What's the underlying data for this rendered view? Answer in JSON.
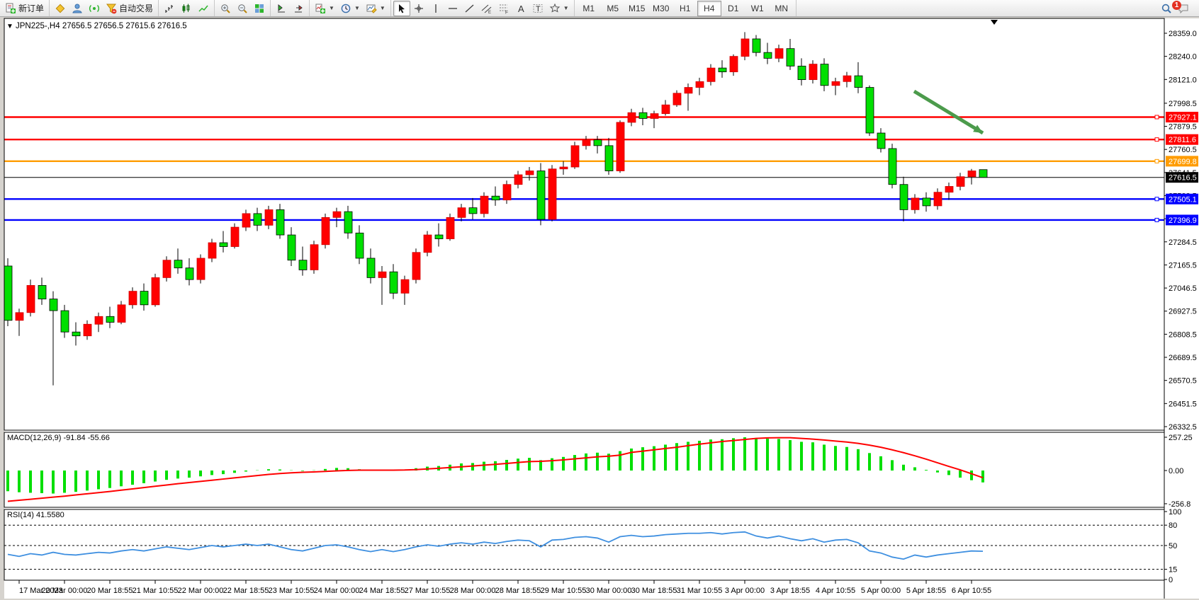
{
  "toolbar": {
    "groups": [
      {
        "items": [
          {
            "name": "new-order-button",
            "icon": "neworder",
            "label": "新订单"
          }
        ]
      },
      {
        "items": [
          {
            "name": "market-watch-button",
            "icon": "diamond"
          },
          {
            "name": "navigator-button",
            "icon": "person"
          },
          {
            "name": "terminal-button",
            "icon": "signal"
          },
          {
            "name": "autotrade-button",
            "icon": "funnel",
            "label": "自动交易"
          }
        ]
      },
      {
        "items": [
          {
            "name": "bar-chart-button",
            "icon": "bars"
          },
          {
            "name": "candle-chart-button",
            "icon": "candles"
          },
          {
            "name": "line-chart-button",
            "icon": "linechart"
          }
        ]
      },
      {
        "items": [
          {
            "name": "zoom-in-button",
            "icon": "zoomin"
          },
          {
            "name": "zoom-out-button",
            "icon": "zoomout"
          },
          {
            "name": "tile-windows-button",
            "icon": "tile"
          }
        ]
      },
      {
        "items": [
          {
            "name": "auto-scroll-button",
            "icon": "scroll"
          },
          {
            "name": "chart-shift-button",
            "icon": "shift"
          }
        ]
      },
      {
        "items": [
          {
            "name": "indicators-button",
            "icon": "indicator",
            "dropdown": true
          },
          {
            "name": "periods-button",
            "icon": "clock",
            "dropdown": true
          },
          {
            "name": "templates-button",
            "icon": "template",
            "dropdown": true
          }
        ]
      },
      {
        "items": [
          {
            "name": "cursor-button",
            "icon": "cursor",
            "active": true
          },
          {
            "name": "crosshair-button",
            "icon": "crosshair"
          },
          {
            "name": "vline-button",
            "icon": "vline"
          },
          {
            "name": "hline-button",
            "icon": "hline"
          },
          {
            "name": "trendline-button",
            "icon": "tline"
          },
          {
            "name": "channel-button",
            "icon": "channel"
          },
          {
            "name": "fibonacci-button",
            "icon": "fibo"
          },
          {
            "name": "text-button",
            "icon": "textA"
          },
          {
            "name": "label-button",
            "icon": "labelT"
          },
          {
            "name": "shapes-button",
            "icon": "shapes",
            "dropdown": true
          }
        ]
      },
      {
        "timeframes": [
          "M1",
          "M5",
          "M15",
          "M30",
          "H1",
          "H4",
          "D1",
          "W1",
          "MN"
        ],
        "active": "H4"
      }
    ],
    "right": [
      {
        "name": "search-button",
        "icon": "search"
      },
      {
        "name": "chat-button",
        "icon": "chat",
        "badge": "1"
      }
    ]
  },
  "chart": {
    "symbol_row": {
      "collapse_icon": "▼",
      "title": "JPN225-,H4",
      "ohlc_text": "27656.5 27656.5 27615.6 27616.5"
    }
  },
  "chart_data": {
    "type": "candlestick",
    "symbol": "JPN225-",
    "timeframe": "H4",
    "convention": "red=up, green=down",
    "current_price": 27616.5,
    "last_ohlc": {
      "open": 27656.5,
      "high": 27656.5,
      "low": 27615.6,
      "close": 27616.5
    },
    "price_axis_ticks": [
      28359.0,
      28240.0,
      28121.0,
      27998.5,
      27879.5,
      27760.5,
      27641.5,
      27522.5,
      27403.5,
      27284.5,
      27165.5,
      27046.5,
      26927.5,
      26808.5,
      26689.5,
      26570.5,
      26451.5,
      26332.5
    ],
    "horizontal_lines": [
      {
        "price": 27927.1,
        "color": "#FF0000",
        "label": "27927.1"
      },
      {
        "price": 27811.6,
        "color": "#FF0000",
        "label": "27811.6"
      },
      {
        "price": 27699.8,
        "color": "#FF9C00",
        "label": "27699.8"
      },
      {
        "price": 27616.5,
        "color": "#000000",
        "label": "27616.5",
        "role": "current-price-line"
      },
      {
        "price": 27505.1,
        "color": "#0000FF",
        "label": "27505.1"
      },
      {
        "price": 27396.9,
        "color": "#0000FF",
        "label": "27396.9"
      }
    ],
    "candles": [
      [
        27160,
        27200,
        26850,
        26880
      ],
      [
        26880,
        26940,
        26800,
        26920
      ],
      [
        26920,
        27090,
        26900,
        27060
      ],
      [
        27060,
        27100,
        26960,
        26990
      ],
      [
        26990,
        27030,
        26545,
        26930
      ],
      [
        26930,
        26960,
        26790,
        26820
      ],
      [
        26820,
        26870,
        26750,
        26800
      ],
      [
        26800,
        26880,
        26780,
        26860
      ],
      [
        26860,
        26920,
        26820,
        26900
      ],
      [
        26900,
        26950,
        26840,
        26870
      ],
      [
        26870,
        26980,
        26860,
        26960
      ],
      [
        26960,
        27050,
        26940,
        27030
      ],
      [
        27030,
        27070,
        26930,
        26960
      ],
      [
        26960,
        27120,
        26950,
        27100
      ],
      [
        27100,
        27210,
        27080,
        27190
      ],
      [
        27190,
        27250,
        27120,
        27150
      ],
      [
        27150,
        27200,
        27060,
        27090
      ],
      [
        27090,
        27220,
        27070,
        27200
      ],
      [
        27200,
        27300,
        27180,
        27280
      ],
      [
        27280,
        27340,
        27230,
        27260
      ],
      [
        27260,
        27380,
        27250,
        27360
      ],
      [
        27360,
        27450,
        27340,
        27430
      ],
      [
        27430,
        27460,
        27340,
        27370
      ],
      [
        27370,
        27470,
        27350,
        27450
      ],
      [
        27450,
        27480,
        27300,
        27320
      ],
      [
        27320,
        27360,
        27160,
        27190
      ],
      [
        27190,
        27260,
        27110,
        27140
      ],
      [
        27140,
        27290,
        27120,
        27270
      ],
      [
        27270,
        27430,
        27250,
        27410
      ],
      [
        27410,
        27460,
        27360,
        27440
      ],
      [
        27440,
        27470,
        27300,
        27330
      ],
      [
        27330,
        27370,
        27170,
        27200
      ],
      [
        27200,
        27250,
        27070,
        27100
      ],
      [
        27100,
        27160,
        26960,
        27130
      ],
      [
        27130,
        27170,
        26990,
        27020
      ],
      [
        27020,
        27110,
        26960,
        27090
      ],
      [
        27090,
        27250,
        27070,
        27230
      ],
      [
        27230,
        27340,
        27210,
        27320
      ],
      [
        27320,
        27380,
        27260,
        27300
      ],
      [
        27300,
        27430,
        27290,
        27410
      ],
      [
        27410,
        27480,
        27390,
        27460
      ],
      [
        27460,
        27510,
        27400,
        27430
      ],
      [
        27430,
        27540,
        27410,
        27520
      ],
      [
        27520,
        27570,
        27470,
        27500
      ],
      [
        27500,
        27600,
        27480,
        27580
      ],
      [
        27580,
        27650,
        27560,
        27630
      ],
      [
        27630,
        27670,
        27600,
        27650
      ],
      [
        27650,
        27690,
        27370,
        27400
      ],
      [
        27400,
        27680,
        27390,
        27660
      ],
      [
        27660,
        27700,
        27630,
        27670
      ],
      [
        27670,
        27800,
        27660,
        27780
      ],
      [
        27780,
        27830,
        27760,
        27810
      ],
      [
        27810,
        27830,
        27740,
        27780
      ],
      [
        27780,
        27820,
        27630,
        27650
      ],
      [
        27650,
        27910,
        27640,
        27900
      ],
      [
        27900,
        27970,
        27880,
        27950
      ],
      [
        27950,
        27975,
        27885,
        27920
      ],
      [
        27920,
        27960,
        27870,
        27945
      ],
      [
        27945,
        28015,
        27935,
        27990
      ],
      [
        27990,
        28065,
        27980,
        28050
      ],
      [
        28050,
        28100,
        27960,
        28080
      ],
      [
        28080,
        28130,
        28040,
        28110
      ],
      [
        28110,
        28200,
        28090,
        28180
      ],
      [
        28180,
        28220,
        28130,
        28160
      ],
      [
        28160,
        28250,
        28140,
        28240
      ],
      [
        28240,
        28365,
        28220,
        28330
      ],
      [
        28330,
        28350,
        28240,
        28260
      ],
      [
        28260,
        28310,
        28200,
        28230
      ],
      [
        28230,
        28300,
        28210,
        28280
      ],
      [
        28280,
        28330,
        28170,
        28190
      ],
      [
        28190,
        28230,
        28090,
        28120
      ],
      [
        28120,
        28220,
        28100,
        28200
      ],
      [
        28200,
        28230,
        28060,
        28090
      ],
      [
        28090,
        28130,
        28040,
        28110
      ],
      [
        28110,
        28160,
        28080,
        28140
      ],
      [
        28140,
        28210,
        28050,
        28080
      ],
      [
        28080,
        28090,
        27830,
        27845
      ],
      [
        27845,
        27870,
        27745,
        27765
      ],
      [
        27765,
        27790,
        27560,
        27580
      ],
      [
        27580,
        27620,
        27390,
        27450
      ],
      [
        27450,
        27530,
        27430,
        27510
      ],
      [
        27510,
        27540,
        27440,
        27470
      ],
      [
        27470,
        27560,
        27450,
        27540
      ],
      [
        27540,
        27590,
        27500,
        27570
      ],
      [
        27570,
        27640,
        27550,
        27620
      ],
      [
        27620,
        27660,
        27580,
        27650
      ],
      [
        27656.5,
        27656.5,
        27615.6,
        27616.5
      ]
    ],
    "time_axis": [
      "17 Mar 2023",
      "20 Mar 00:00",
      "20 Mar 18:55",
      "21 Mar 10:55",
      "22 Mar 00:00",
      "22 Mar 18:55",
      "23 Mar 10:55",
      "24 Mar 00:00",
      "24 Mar 18:55",
      "27 Mar 10:55",
      "28 Mar 00:00",
      "28 Mar 18:55",
      "29 Mar 10:55",
      "30 Mar 00:00",
      "30 Mar 18:55",
      "31 Mar 10:55",
      "3 Apr 00:00",
      "3 Apr 18:55",
      "4 Apr 10:55",
      "5 Apr 00:00",
      "5 Apr 18:55",
      "6 Apr 10:55"
    ],
    "indicators": [
      {
        "name": "MACD",
        "label": "MACD(12,26,9)",
        "values_label": "-91.84 -55.66",
        "axis_ticks": [
          "257.25",
          "0.00",
          "-256.8"
        ],
        "histogram": [
          -160,
          -168,
          -172,
          -175,
          -178,
          -172,
          -165,
          -155,
          -145,
          -135,
          -122,
          -110,
          -98,
          -85,
          -72,
          -62,
          -55,
          -45,
          -35,
          -28,
          -18,
          -8,
          2,
          10,
          8,
          2,
          -4,
          2,
          12,
          20,
          18,
          10,
          2,
          5,
          3,
          8,
          18,
          30,
          35,
          45,
          55,
          58,
          68,
          72,
          82,
          92,
          98,
          80,
          95,
          105,
          120,
          132,
          138,
          130,
          150,
          170,
          180,
          188,
          200,
          212,
          222,
          230,
          240,
          242,
          250,
          257,
          252,
          246,
          244,
          235,
          222,
          218,
          200,
          190,
          182,
          165,
          135,
          110,
          80,
          45,
          25,
          5,
          -15,
          -35,
          -55,
          -75,
          -91.84
        ],
        "signal": [
          -238,
          -230,
          -222,
          -214,
          -206,
          -198,
          -189,
          -180,
          -171,
          -162,
          -152,
          -142,
          -132,
          -122,
          -112,
          -102,
          -93,
          -84,
          -75,
          -66,
          -57,
          -48,
          -39,
          -30,
          -23,
          -18,
          -14,
          -11,
          -7,
          -3,
          1,
          3,
          3,
          3,
          3,
          4,
          7,
          12,
          17,
          23,
          29,
          35,
          42,
          48,
          55,
          62,
          69,
          71,
          76,
          82,
          90,
          98,
          106,
          111,
          119,
          140,
          150,
          160,
          170,
          180,
          192,
          204,
          214,
          224,
          232,
          240,
          248,
          252,
          254,
          254,
          248,
          243,
          236,
          228,
          220,
          210,
          196,
          180,
          160,
          138,
          114,
          88,
          60,
          32,
          5,
          -25,
          -55.66
        ]
      },
      {
        "name": "RSI",
        "label": "RSI(14)",
        "value_label": "41.5580",
        "levels": [
          80,
          50,
          15
        ],
        "axis_ticks": [
          "100",
          "80",
          "50",
          "15",
          "0"
        ],
        "series": [
          37,
          34,
          38,
          36,
          40,
          37,
          36,
          38,
          40,
          39,
          42,
          44,
          42,
          45,
          48,
          46,
          44,
          47,
          50,
          48,
          50,
          52,
          50,
          52,
          48,
          44,
          42,
          46,
          50,
          51,
          48,
          44,
          41,
          44,
          41,
          44,
          48,
          51,
          49,
          52,
          54,
          52,
          55,
          53,
          56,
          58,
          57,
          48,
          58,
          59,
          62,
          63,
          61,
          55,
          63,
          65,
          63,
          64,
          66,
          67,
          68,
          68,
          69,
          67,
          69,
          70,
          64,
          61,
          64,
          60,
          57,
          60,
          55,
          58,
          59,
          54,
          42,
          39,
          33,
          30,
          36,
          33,
          36,
          38,
          40,
          42,
          41.56
        ]
      }
    ],
    "annotations": [
      {
        "type": "arrow",
        "name": "down-trend-arrow",
        "color": "#4C9B4C",
        "from_price": 28060,
        "to_price": 27845
      }
    ],
    "colors": {
      "up": "#FF0000",
      "down": "#00DF00",
      "wick": "#000000",
      "macd_hist": "#00DF00",
      "macd_signal": "#FF0000",
      "rsi": "#3E8FE0",
      "background": "#FFFFFF",
      "axis_text": "#000000"
    }
  }
}
